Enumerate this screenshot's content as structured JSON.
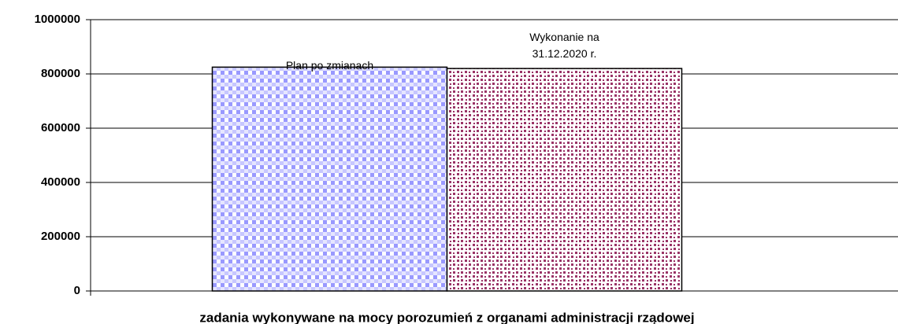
{
  "chart_data": {
    "type": "bar",
    "categories": [
      "zadania wykonywane na mocy porozumień z organami administracji rządowej"
    ],
    "series": [
      {
        "name": "Plan po zmianach",
        "color": "#9999ff",
        "values": [
          825000
        ]
      },
      {
        "name": "Wykonanie na 31.12.2020 r.",
        "color": "#993366",
        "values": [
          820000
        ]
      }
    ],
    "ylim": [
      0,
      1000000
    ],
    "yticks": [
      0,
      200000,
      400000,
      600000,
      800000,
      1000000
    ],
    "grid": true
  }
}
